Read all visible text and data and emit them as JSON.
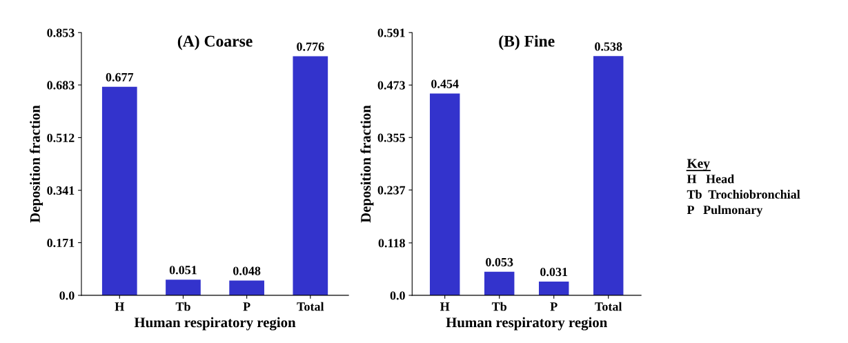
{
  "chart_data": [
    {
      "type": "bar",
      "title": "(A) Coarse",
      "xlabel": "Human respiratory region",
      "ylabel": "Deposition fraction",
      "categories": [
        "H",
        "Tb",
        "P",
        "Total"
      ],
      "values": [
        0.677,
        0.051,
        0.048,
        0.776
      ],
      "color": "#3333cc",
      "data_labels": true,
      "ylim": [
        0,
        0.853
      ],
      "yticks": [
        {
          "value": 0,
          "label": "0.0"
        },
        0.171,
        0.341,
        0.512,
        0.683,
        0.853
      ],
      "grid": false,
      "legend": false
    },
    {
      "type": "bar",
      "title": "(B) Fine",
      "xlabel": "Human respiratory region",
      "ylabel": "Deposition fraction",
      "categories": [
        "H",
        "Tb",
        "P",
        "Total"
      ],
      "values": [
        0.454,
        0.053,
        0.031,
        0.538
      ],
      "color": "#3333cc",
      "data_labels": true,
      "ylim": [
        0,
        0.591
      ],
      "yticks": [
        {
          "value": 0,
          "label": "0.0"
        },
        0.118,
        0.237,
        0.355,
        0.473,
        0.591
      ],
      "grid": false,
      "legend": false,
      "annotations": [
        "Key",
        "H   Head",
        "Tb  Trochiobronchial",
        "P   Pulmonary"
      ]
    }
  ]
}
